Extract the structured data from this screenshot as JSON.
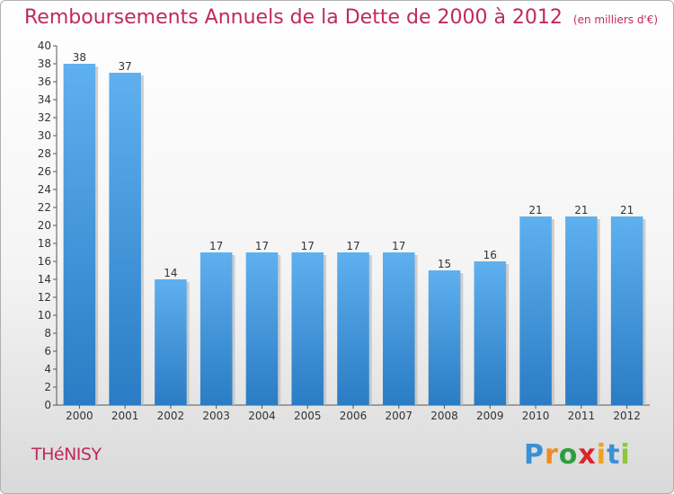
{
  "chart_data": {
    "type": "bar",
    "title": "Remboursements Annuels de la Dette de 2000 à 2012",
    "subtitle": "(en milliers d'€)",
    "categories": [
      "2000",
      "2001",
      "2002",
      "2003",
      "2004",
      "2005",
      "2006",
      "2007",
      "2008",
      "2009",
      "2010",
      "2011",
      "2012"
    ],
    "values": [
      38,
      37,
      14,
      17,
      17,
      17,
      17,
      17,
      15,
      16,
      21,
      21,
      21
    ],
    "ylim": [
      0,
      40
    ],
    "ytick_step": 2,
    "grid": false,
    "bar_color": "#4a9de0",
    "data_labels": true
  },
  "footer": {
    "place": "THéNISY",
    "logo_letters": [
      "P",
      "r",
      "o",
      "x",
      "i",
      "t",
      "i"
    ],
    "logo_colors": [
      "#3b8fd6",
      "#f08a1c",
      "#2e9e3e",
      "#d8262b",
      "#f0a11c",
      "#3b8fd6",
      "#8dc63f"
    ]
  }
}
